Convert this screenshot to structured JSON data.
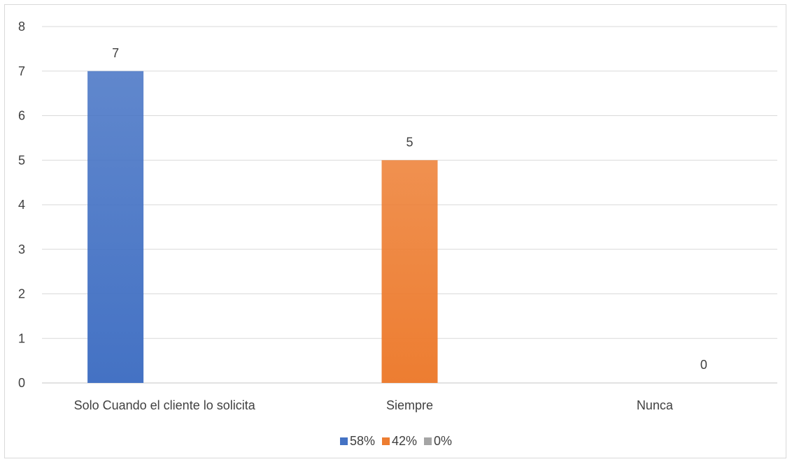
{
  "chart_data": {
    "type": "bar",
    "categories": [
      "Solo Cuando el cliente lo solicita",
      "Siempre",
      "Nunca"
    ],
    "series": [
      {
        "name": "58%",
        "values": [
          7,
          null,
          null
        ],
        "color": "#4472C4"
      },
      {
        "name": "42%",
        "values": [
          null,
          5,
          null
        ],
        "color": "#ED7D31"
      },
      {
        "name": "0%",
        "values": [
          null,
          null,
          0
        ],
        "color": "#A5A5A5"
      }
    ],
    "data_labels": [
      "7",
      "5",
      "0"
    ],
    "yticks": [
      "0",
      "1",
      "2",
      "3",
      "4",
      "5",
      "6",
      "7",
      "8"
    ],
    "ylim": [
      0,
      8
    ],
    "grid": true,
    "legend_position": "bottom",
    "title": "",
    "xlabel": "",
    "ylabel": ""
  }
}
